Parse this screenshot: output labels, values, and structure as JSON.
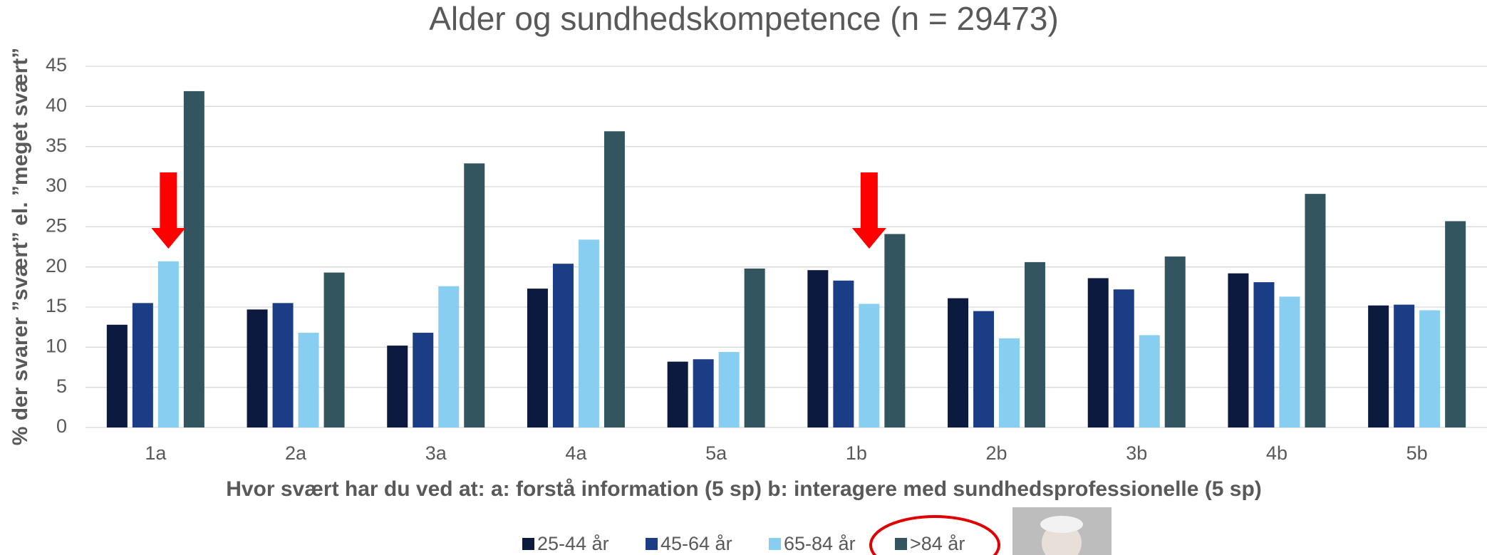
{
  "chart_data": {
    "type": "bar",
    "title": "Alder og sundhedskompetence (n = 29473)",
    "x_label": "Hvor svært har du ved at: a: forstå information (5 sp) b: interagere med sundhedsprofessionelle (5 sp)",
    "y_label": "% der svarer ”svært” el. ”meget svært”",
    "categories": [
      "1a",
      "2a",
      "3a",
      "4a",
      "5a",
      "1b",
      "2b",
      "3b",
      "4b",
      "5b"
    ],
    "series": [
      {
        "name": "25-44 år",
        "color": "#0d1a40",
        "values": [
          12.8,
          14.7,
          10.2,
          17.3,
          8.2,
          19.6,
          16.1,
          18.6,
          19.2,
          15.2
        ]
      },
      {
        "name": "45-64 år",
        "color": "#1a3d85",
        "values": [
          15.5,
          15.5,
          11.8,
          20.4,
          8.5,
          18.3,
          14.5,
          17.2,
          18.1,
          15.3
        ]
      },
      {
        "name": "65-84 år",
        "color": "#87cef0",
        "values": [
          20.7,
          11.8,
          17.6,
          23.4,
          9.4,
          15.4,
          11.1,
          11.5,
          16.3,
          14.6
        ]
      },
      {
        "name": ">84 år",
        "color": "#32555f",
        "values": [
          41.9,
          19.3,
          32.9,
          36.9,
          19.8,
          24.1,
          20.6,
          21.3,
          29.1,
          25.7
        ]
      }
    ],
    "ylim": [
      0,
      45
    ],
    "yticks": [
      0,
      5,
      10,
      15,
      20,
      25,
      30,
      35,
      40,
      45
    ],
    "grid": true,
    "legend": "bottom"
  }
}
